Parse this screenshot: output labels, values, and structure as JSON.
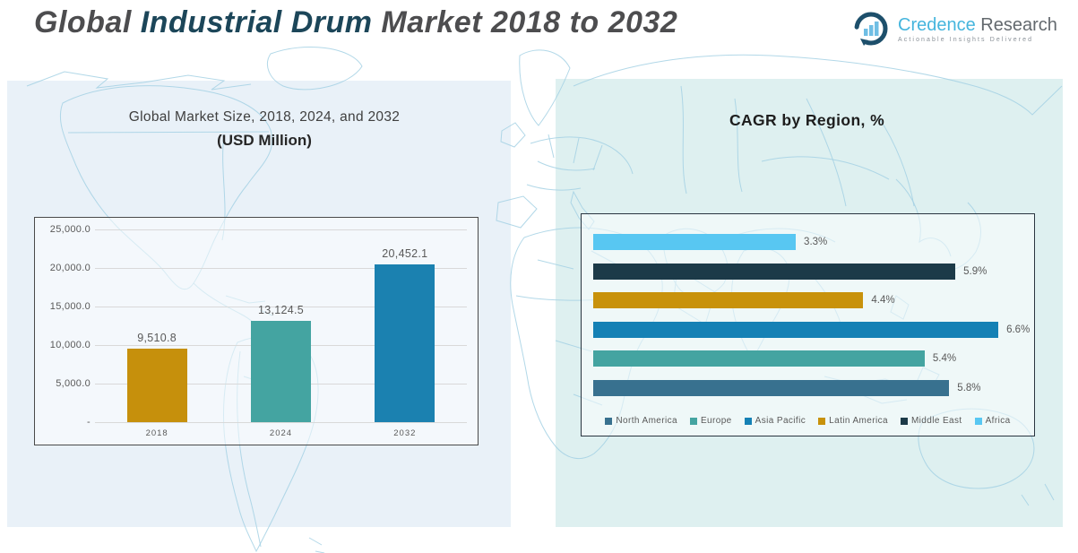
{
  "header": {
    "title_part1": "Global ",
    "title_part2": "Industrial Drum",
    "title_part3": " Market 2018 to 2032",
    "logo": {
      "brand_primary": "Credence",
      "brand_secondary": " Research",
      "tagline": "Actionable Insights Delivered"
    }
  },
  "colors": {
    "left_panel_bg": "#e9f1f8",
    "right_panel_bg": "#def0f0",
    "map_stroke": "#a5d1e4",
    "text_gray": "#595959",
    "title_gray": "#4d4d4f",
    "title_accent": "#1c4659",
    "gridline": "#d9d9d9"
  },
  "chart_data": [
    {
      "type": "bar",
      "title": "Global Market Size, 2018, 2024, and 2032",
      "subtitle": "(USD Million)",
      "categories": [
        "2018",
        "2024",
        "2032"
      ],
      "values": [
        9510.8,
        13124.5,
        20452.1
      ],
      "value_labels": [
        "9,510.8",
        "13,124.5",
        "20,452.1"
      ],
      "bar_colors": [
        "#c6900c",
        "#44a4a1",
        "#1b81b0"
      ],
      "ylim": [
        0,
        25000
      ],
      "ytick_labels": [
        "25,000.0",
        "20,000.0",
        "15,000.0",
        "10,000.0",
        "5,000.0",
        "-"
      ],
      "grid": true,
      "legend": false
    },
    {
      "type": "bar-horizontal",
      "title": "CAGR by Region, %",
      "rows_top_to_bottom": [
        {
          "name": "Africa",
          "value": 3.3,
          "label": "3.3%",
          "color": "#58c7f2"
        },
        {
          "name": "Middle East",
          "value": 5.9,
          "label": "5.9%",
          "color": "#1c3a48"
        },
        {
          "name": "Latin America",
          "value": 4.4,
          "label": "4.4%",
          "color": "#c8920b"
        },
        {
          "name": "Asia Pacific",
          "value": 6.6,
          "label": "6.6%",
          "color": "#1581b5"
        },
        {
          "name": "Europe",
          "value": 5.4,
          "label": "5.4%",
          "color": "#44a4a1"
        },
        {
          "name": "North America",
          "value": 5.8,
          "label": "5.8%",
          "color": "#38718f"
        }
      ],
      "xlim": [
        0,
        7
      ],
      "legend_order": [
        "North America",
        "Europe",
        "Asia Pacific",
        "Latin America",
        "Middle East",
        "Africa"
      ],
      "legend_position": "bottom",
      "grid": false
    }
  ]
}
